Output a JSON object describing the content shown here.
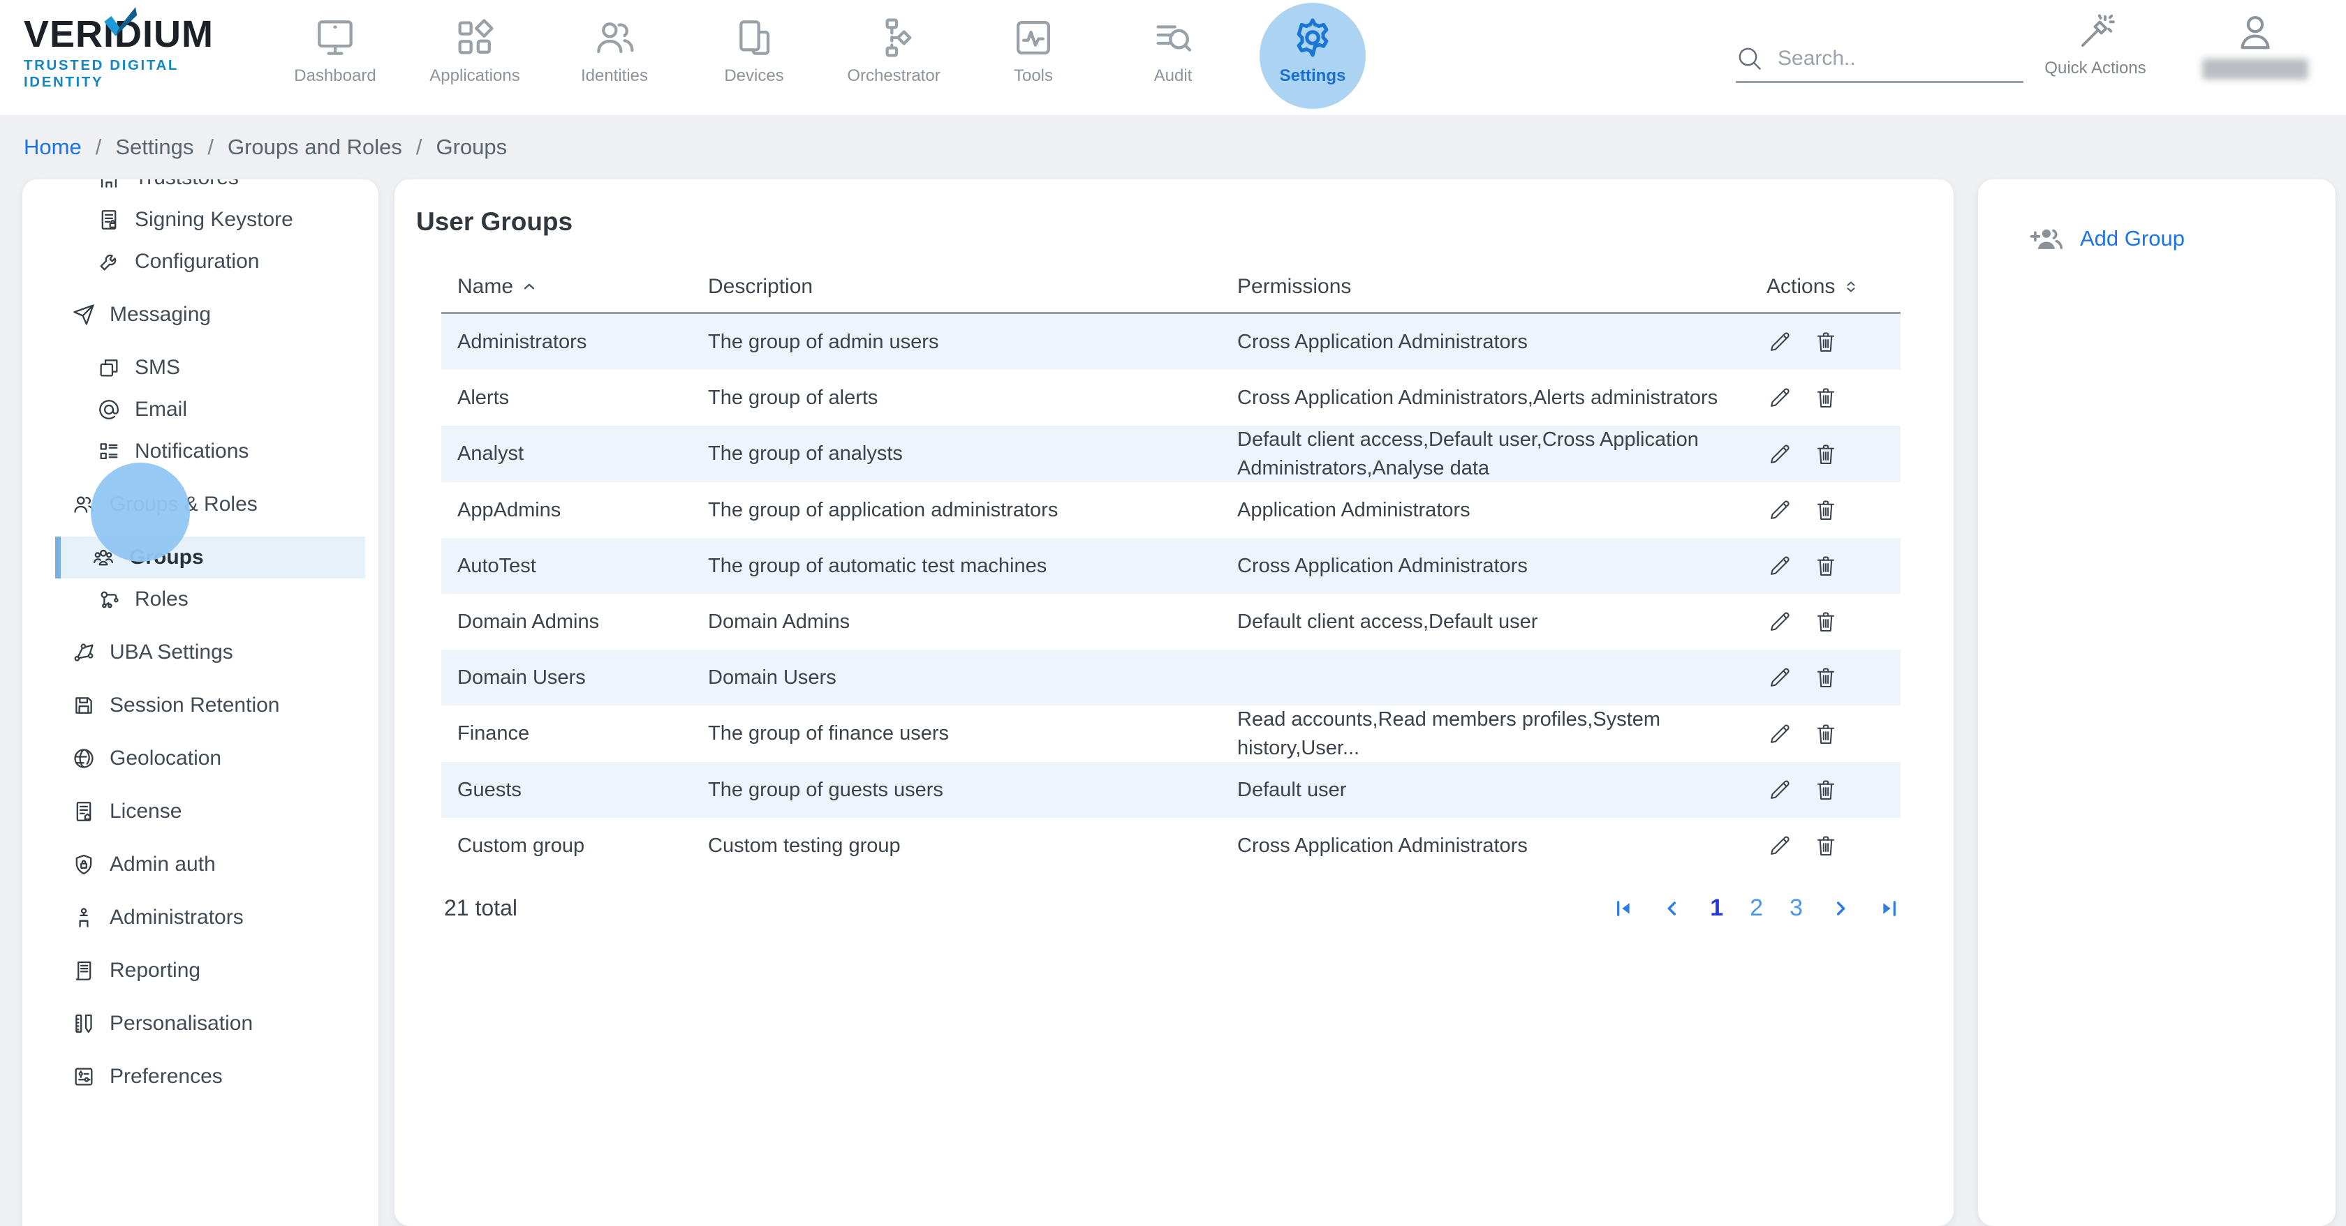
{
  "brand": {
    "name": "VERIDIUM",
    "tagline": "TRUSTED DIGITAL IDENTITY"
  },
  "topnav": {
    "items": [
      {
        "id": "dashboard",
        "label": "Dashboard",
        "icon": "dashboard",
        "active": false
      },
      {
        "id": "applications",
        "label": "Applications",
        "icon": "applications",
        "active": false
      },
      {
        "id": "identities",
        "label": "Identities",
        "icon": "identities",
        "active": false
      },
      {
        "id": "devices",
        "label": "Devices",
        "icon": "devices",
        "active": false
      },
      {
        "id": "orchestrator",
        "label": "Orchestrator",
        "icon": "orchestrator",
        "active": false
      },
      {
        "id": "tools",
        "label": "Tools",
        "icon": "tools",
        "active": false
      },
      {
        "id": "audit",
        "label": "Audit",
        "icon": "audit",
        "active": false
      },
      {
        "id": "settings",
        "label": "Settings",
        "icon": "settings",
        "active": true
      }
    ]
  },
  "search": {
    "placeholder": "Search.."
  },
  "quick_actions_label": "Quick Actions",
  "breadcrumb": {
    "separator": "/",
    "items": [
      {
        "label": "Home",
        "link": true
      },
      {
        "label": "Settings",
        "link": false
      },
      {
        "label": "Groups and Roles",
        "link": false
      },
      {
        "label": "Groups",
        "link": false
      }
    ]
  },
  "sidebar": {
    "items": [
      {
        "id": "truststores",
        "label": "Truststores",
        "icon": "truststores",
        "level": "child",
        "selected": false
      },
      {
        "id": "signing-keystore",
        "label": "Signing Keystore",
        "icon": "signing-keystore",
        "level": "child",
        "selected": false
      },
      {
        "id": "configuration",
        "label": "Configuration",
        "icon": "configuration",
        "level": "child",
        "selected": false
      },
      {
        "id": "messaging",
        "label": "Messaging",
        "icon": "messaging",
        "level": "section",
        "selected": false
      },
      {
        "id": "sms",
        "label": "SMS",
        "icon": "sms",
        "level": "child",
        "selected": false
      },
      {
        "id": "email",
        "label": "Email",
        "icon": "email",
        "level": "child",
        "selected": false
      },
      {
        "id": "notifications",
        "label": "Notifications",
        "icon": "notifications",
        "level": "child",
        "selected": false
      },
      {
        "id": "groups-roles",
        "label": "Groups & Roles",
        "icon": "groups-roles",
        "level": "section",
        "selected": false
      },
      {
        "id": "groups",
        "label": "Groups",
        "icon": "groups",
        "level": "child",
        "selected": true
      },
      {
        "id": "roles",
        "label": "Roles",
        "icon": "roles",
        "level": "child",
        "selected": false
      },
      {
        "id": "uba-settings",
        "label": "UBA Settings",
        "icon": "uba-settings",
        "level": "section",
        "selected": false
      },
      {
        "id": "session-retention",
        "label": "Session Retention",
        "icon": "session-retention",
        "level": "section",
        "selected": false
      },
      {
        "id": "geolocation",
        "label": "Geolocation",
        "icon": "geolocation",
        "level": "section",
        "selected": false
      },
      {
        "id": "license",
        "label": "License",
        "icon": "license",
        "level": "section",
        "selected": false
      },
      {
        "id": "admin-auth",
        "label": "Admin auth",
        "icon": "admin-auth",
        "level": "section",
        "selected": false
      },
      {
        "id": "administrators",
        "label": "Administrators",
        "icon": "administrators",
        "level": "section",
        "selected": false
      },
      {
        "id": "reporting",
        "label": "Reporting",
        "icon": "reporting",
        "level": "section",
        "selected": false
      },
      {
        "id": "personalisation",
        "label": "Personalisation",
        "icon": "personalisation",
        "level": "section",
        "selected": false
      },
      {
        "id": "preferences",
        "label": "Preferences",
        "icon": "preferences",
        "level": "section",
        "selected": false
      }
    ]
  },
  "main": {
    "title": "User Groups",
    "table": {
      "columns": [
        {
          "label": "Name",
          "sort": "asc"
        },
        {
          "label": "Description",
          "sort": null
        },
        {
          "label": "Permissions",
          "sort": null
        },
        {
          "label": "Actions",
          "sort": "both"
        }
      ],
      "rows": [
        {
          "name": "Administrators",
          "description": "The group of admin users",
          "permissions": "Cross Application Administrators"
        },
        {
          "name": "Alerts",
          "description": "The group of alerts",
          "permissions": "Cross Application Administrators,Alerts administrators"
        },
        {
          "name": "Analyst",
          "description": "The group of analysts",
          "permissions": "Default client access,Default user,Cross Application Administrators,Analyse data"
        },
        {
          "name": "AppAdmins",
          "description": "The group of application administrators",
          "permissions": "Application Administrators"
        },
        {
          "name": "AutoTest",
          "description": "The group of automatic test machines",
          "permissions": "Cross Application Administrators"
        },
        {
          "name": "Domain Admins",
          "description": "Domain Admins",
          "permissions": "Default client access,Default user"
        },
        {
          "name": "Domain Users",
          "description": "Domain Users",
          "permissions": ""
        },
        {
          "name": "Finance",
          "description": "The group of finance users",
          "permissions": "Read accounts,Read members profiles,System history,User..."
        },
        {
          "name": "Guests",
          "description": "The group of guests users",
          "permissions": "Default user"
        },
        {
          "name": "Custom group",
          "description": "Custom testing group",
          "permissions": "Cross Application Administrators"
        }
      ]
    },
    "total_label": "21 total",
    "pagination": {
      "pages": [
        "1",
        "2",
        "3"
      ],
      "current": "1"
    }
  },
  "panel": {
    "add_group_label": "Add Group"
  },
  "colors": {
    "accent_blue": "#1a73e8",
    "active_nav_blue": "#1b75d2",
    "active_halo": "#abd4f2",
    "selected_row_bg": "#e7f1fa",
    "selected_row_bar": "#78b1df",
    "stripe_row_bg": "#edf4fa",
    "brand_tagline_blue": "#1387c2",
    "page_bg": "#eef0f3"
  }
}
